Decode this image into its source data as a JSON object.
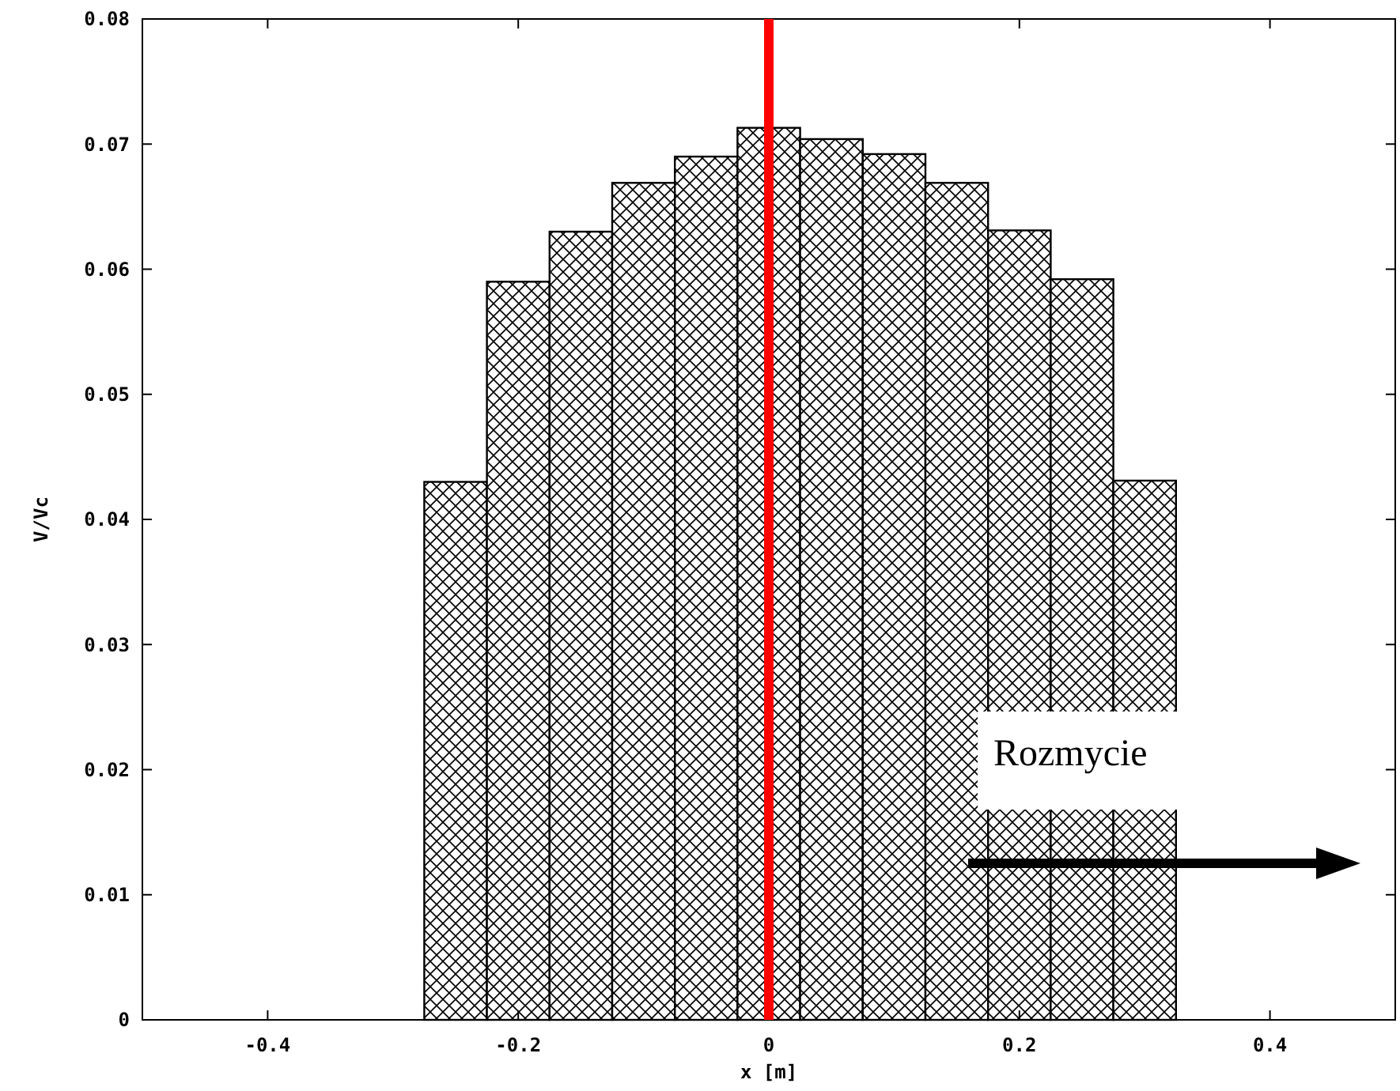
{
  "chart_data": {
    "type": "histogram",
    "xlabel": "x [m]",
    "ylabel": "V/Vc",
    "bins": [
      -0.275,
      -0.225,
      -0.175,
      -0.125,
      -0.075,
      -0.025,
      0.025,
      0.075,
      0.125,
      0.175,
      0.225,
      0.275,
      0.325
    ],
    "values": [
      0.043,
      0.059,
      0.063,
      0.0669,
      0.069,
      0.0713,
      0.0704,
      0.0692,
      0.0669,
      0.0631,
      0.0592,
      0.0431
    ],
    "color": "#000000",
    "xlim": [
      -0.5,
      0.5
    ],
    "xticks": [
      {
        "value": -0.4,
        "label": "-0.4"
      },
      {
        "value": -0.2,
        "label": "-0.2"
      },
      {
        "value": 0,
        "label": "0"
      },
      {
        "value": 0.2,
        "label": "0.2"
      },
      {
        "value": 0.4,
        "label": "0.4"
      }
    ],
    "ylim": [
      0,
      0.08
    ],
    "yticks": [
      {
        "value": 0,
        "label": "0"
      },
      {
        "value": 0.01,
        "label": "0.01"
      },
      {
        "value": 0.02,
        "label": "0.02"
      },
      {
        "value": 0.03,
        "label": "0.03"
      },
      {
        "value": 0.04,
        "label": "0.04"
      },
      {
        "value": 0.05,
        "label": "0.05"
      },
      {
        "value": 0.06,
        "label": "0.06"
      },
      {
        "value": 0.07,
        "label": "0.07"
      },
      {
        "value": 0.08,
        "label": "0.08"
      }
    ],
    "ref_lines": [
      {
        "axis": "x",
        "value": 0,
        "color": "#ff0000"
      }
    ],
    "annotations": [
      "Rozmycie"
    ]
  }
}
